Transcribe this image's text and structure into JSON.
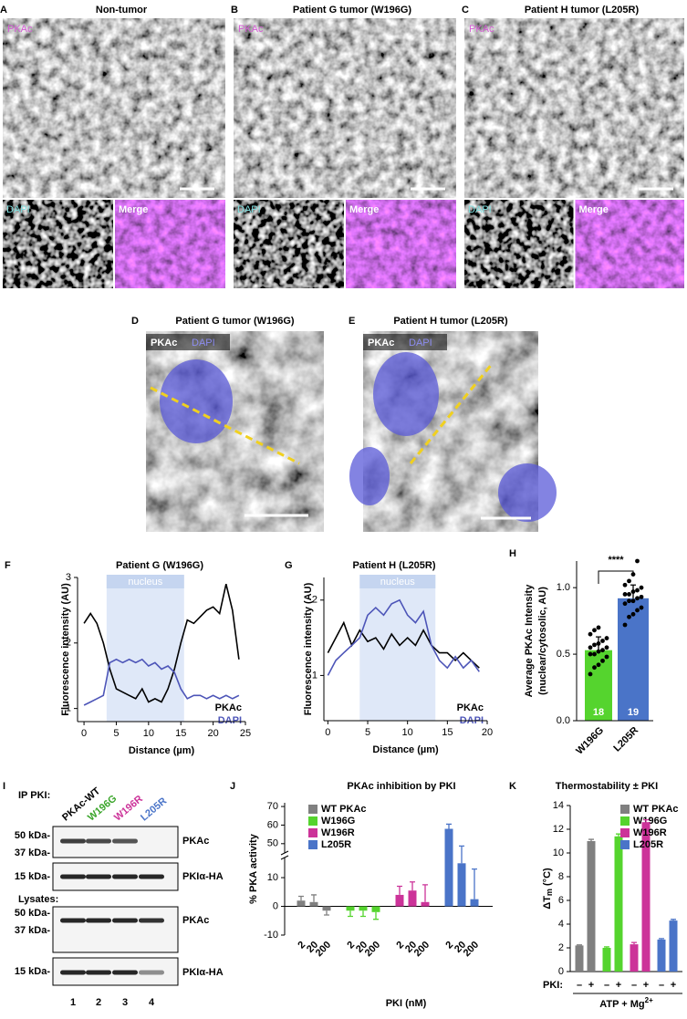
{
  "panels_top": [
    {
      "letter": "A",
      "title": "Non-tumor",
      "channel": "PKAc",
      "sub": [
        "DAPI",
        "Merge"
      ]
    },
    {
      "letter": "B",
      "title": "Patient G tumor (W196G)",
      "channel": "PKAc",
      "sub": [
        "DAPI",
        "Merge"
      ]
    },
    {
      "letter": "C",
      "title": "Patient H tumor (L205R)",
      "channel": "PKAc",
      "sub": [
        "DAPI",
        "Merge"
      ]
    }
  ],
  "panels_zoom": [
    {
      "letter": "D",
      "title": "Patient G tumor (W196G)",
      "channels": [
        "PKAc",
        "DAPI"
      ]
    },
    {
      "letter": "E",
      "title": "Patient H tumor (L205R)",
      "channels": [
        "PKAc",
        "DAPI"
      ]
    }
  ],
  "chart_data": [
    {
      "letter": "F",
      "type": "line",
      "title": "Patient G (W196G)",
      "x_label": "Distance (µm)",
      "y_label": "Fluorescence intensity (AU)",
      "region": {
        "label": "nucleus",
        "range": [
          3.5,
          15.5
        ]
      },
      "x": [
        0,
        1,
        2,
        3,
        4,
        5,
        6,
        7,
        8,
        9,
        10,
        11,
        12,
        13,
        14,
        15,
        16,
        17,
        18,
        19,
        20,
        21,
        22,
        23,
        24
      ],
      "series": [
        {
          "name": "PKAc",
          "color": "#000000",
          "values": [
            2.3,
            2.45,
            2.3,
            2.0,
            1.6,
            1.3,
            1.25,
            1.2,
            1.15,
            1.3,
            1.1,
            1.15,
            1.1,
            1.3,
            1.6,
            2.0,
            2.35,
            2.3,
            2.4,
            2.5,
            2.55,
            2.45,
            2.9,
            2.5,
            1.75
          ]
        },
        {
          "name": "DAPI",
          "color": "#4d55b8",
          "values": [
            1.05,
            1.1,
            1.15,
            1.2,
            1.7,
            1.75,
            1.7,
            1.75,
            1.7,
            1.75,
            1.65,
            1.7,
            1.6,
            1.65,
            1.55,
            1.3,
            1.15,
            1.2,
            1.2,
            1.15,
            1.2,
            1.15,
            1.2,
            1.15,
            1.2
          ]
        }
      ],
      "xlim": [
        -1,
        25
      ],
      "ylim": [
        0.8,
        3
      ],
      "xticks": [
        0,
        5,
        10,
        15,
        20,
        25
      ],
      "yticks": [
        1,
        2,
        3
      ]
    },
    {
      "letter": "G",
      "type": "line",
      "title": "Patient H (L205R)",
      "x_label": "Distance (µm)",
      "y_label": "Fluorescence intensity (AU)",
      "region": {
        "label": "nucleus",
        "range": [
          4,
          13.5
        ]
      },
      "x": [
        0,
        1,
        2,
        3,
        4,
        5,
        6,
        7,
        8,
        9,
        10,
        11,
        12,
        13,
        14,
        15,
        16,
        17,
        18,
        19
      ],
      "series": [
        {
          "name": "PKAc",
          "color": "#000000",
          "values": [
            1.3,
            1.5,
            1.7,
            1.4,
            1.6,
            1.45,
            1.5,
            1.35,
            1.55,
            1.4,
            1.5,
            1.4,
            1.6,
            1.4,
            1.3,
            1.3,
            1.2,
            1.3,
            1.2,
            1.1
          ]
        },
        {
          "name": "DAPI",
          "color": "#4d55b8",
          "values": [
            1.0,
            1.2,
            1.3,
            1.4,
            1.5,
            1.8,
            1.9,
            1.8,
            1.95,
            2.0,
            1.8,
            1.7,
            1.85,
            1.4,
            1.2,
            1.1,
            1.25,
            1.1,
            1.2,
            1.05
          ]
        }
      ],
      "xlim": [
        -0.5,
        20
      ],
      "ylim": [
        0.4,
        2.3
      ],
      "xticks": [
        0,
        5,
        10,
        15,
        20
      ],
      "yticks": [
        1,
        2
      ]
    },
    {
      "letter": "H",
      "type": "bar",
      "y_label": [
        "Average PKAc Intensity",
        "(nuclear/cytosolic, AU)"
      ],
      "categories": [
        "W196G",
        "L205R"
      ],
      "values": [
        0.53,
        0.92
      ],
      "errors": [
        0.1,
        0.1
      ],
      "colors": [
        "#55d42e",
        "#4a74c8"
      ],
      "n": [
        18,
        19
      ],
      "points": [
        [
          0.35,
          0.4,
          0.42,
          0.45,
          0.48,
          0.5,
          0.5,
          0.52,
          0.53,
          0.55,
          0.55,
          0.57,
          0.58,
          0.6,
          0.62,
          0.65,
          0.68,
          0.7
        ],
        [
          0.72,
          0.78,
          0.8,
          0.83,
          0.85,
          0.88,
          0.9,
          0.9,
          0.92,
          0.93,
          0.95,
          0.95,
          0.97,
          0.98,
          1.0,
          1.02,
          1.05,
          1.1,
          1.2
        ]
      ],
      "significance": "****",
      "ylim": [
        0,
        1.2
      ],
      "yticks": [
        {
          "value": 0,
          "label": "0.0"
        },
        {
          "value": 0.5,
          "label": "0.5"
        },
        {
          "value": 1,
          "label": "1.0"
        }
      ]
    },
    {
      "letter": "J",
      "type": "bar",
      "title": "PKAc inhibition by PKI",
      "x_label": "PKI (nM)",
      "y_label": "% PKA activity",
      "categories": [
        "2",
        "20",
        "200"
      ],
      "series": [
        {
          "name": "WT PKAc",
          "color": "#808080",
          "values": [
            2,
            1.5,
            -1.5
          ],
          "errors": [
            1.5,
            2.5,
            1.5
          ]
        },
        {
          "name": "W196G",
          "color": "#55d42e",
          "values": [
            -1.5,
            -1.5,
            -2
          ],
          "errors": [
            2,
            2,
            2.5
          ]
        },
        {
          "name": "W196R",
          "color": "#cc3399",
          "values": [
            4,
            5.5,
            1.5
          ],
          "errors": [
            3,
            3,
            6
          ]
        },
        {
          "name": "L205R",
          "color": "#4a74c8",
          "values": [
            58,
            15,
            2.5
          ],
          "errors": [
            2.5,
            6,
            10.5
          ]
        }
      ],
      "ylim": [
        -10,
        72
      ],
      "ybreak": [
        17,
        45
      ],
      "yticks": [
        -10,
        0,
        10,
        50,
        60,
        70
      ]
    },
    {
      "letter": "K",
      "type": "bar",
      "title": "Thermostability ± PKI",
      "y_label": [
        "ΔT",
        "m",
        " (°C)"
      ],
      "categories": [
        "–",
        "+"
      ],
      "x_row_label": "PKI:",
      "condition": [
        "ATP + Mg",
        "2+"
      ],
      "series": [
        {
          "name": "WT PKAc",
          "color": "#808080",
          "values": [
            2.2,
            11.0
          ],
          "errors": [
            0.05,
            0.15
          ]
        },
        {
          "name": "W196G",
          "color": "#55d42e",
          "values": [
            2.0,
            11.4
          ],
          "errors": [
            0.08,
            0.2
          ]
        },
        {
          "name": "W196R",
          "color": "#cc3399",
          "values": [
            2.3,
            12.6
          ],
          "errors": [
            0.15,
            0.2
          ]
        },
        {
          "name": "L205R",
          "color": "#4a74c8",
          "values": [
            2.7,
            4.3
          ],
          "errors": [
            0.08,
            0.1
          ]
        }
      ],
      "ylim": [
        0,
        14
      ],
      "yticks": [
        0,
        2,
        4,
        6,
        8,
        10,
        12,
        14
      ]
    }
  ],
  "blot": {
    "letter": "I",
    "ip_label": "IP PKI:",
    "lane_labels": [
      "PKAc-WT",
      "W196G",
      "W196R",
      "L205R"
    ],
    "lane_colors": [
      "#000000",
      "#3aa52a",
      "#cc3399",
      "#4a74c8"
    ],
    "lysates_label": "Lysates:",
    "strips": [
      {
        "markers": [
          "50 kDa-",
          "37 kDa-"
        ],
        "target": "PKAc"
      },
      {
        "markers": [
          "15 kDa-"
        ],
        "target": "PKIα-HA"
      },
      {
        "markers": [
          "50 kDa-",
          "37 kDa-"
        ],
        "target": "PKAc"
      },
      {
        "markers": [
          "15 kDa-"
        ],
        "target": "PKIα-HA"
      }
    ],
    "lane_numbers": [
      "1",
      "2",
      "3",
      "4"
    ]
  }
}
